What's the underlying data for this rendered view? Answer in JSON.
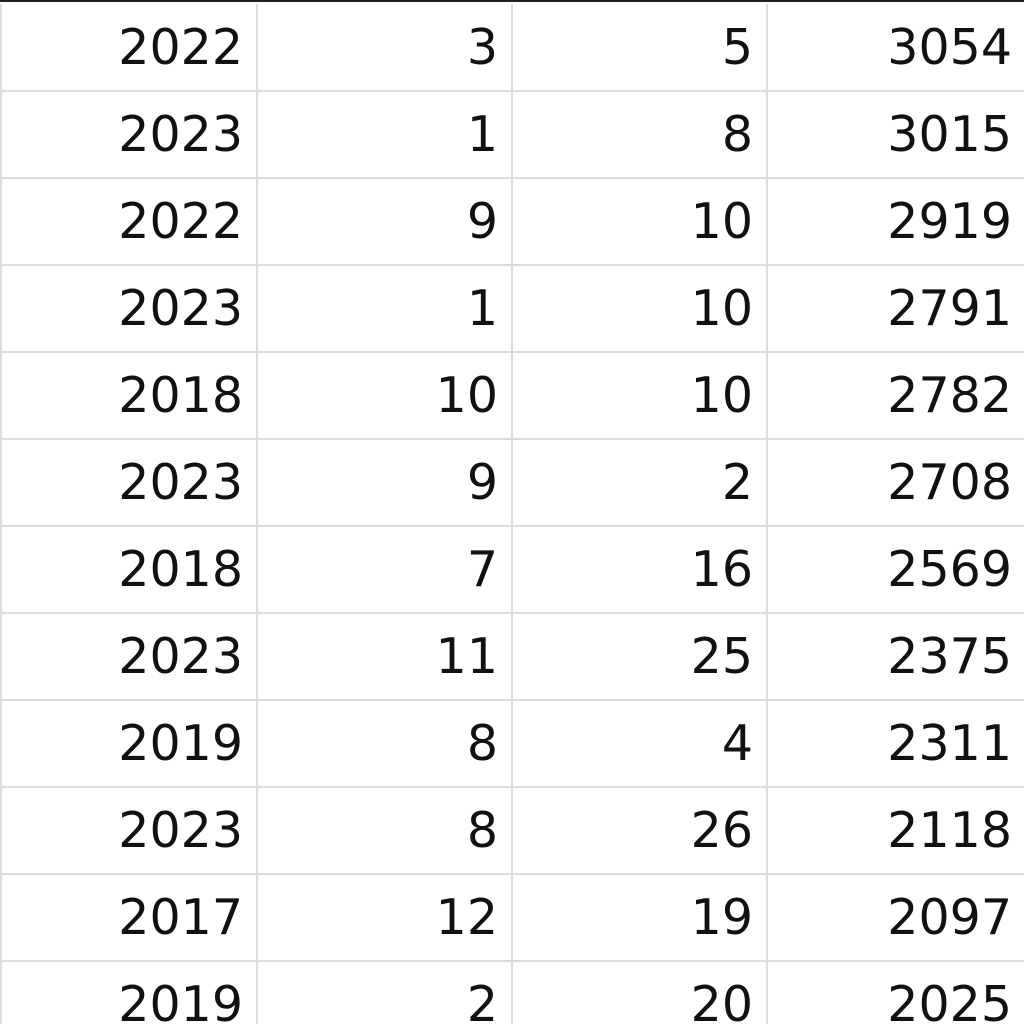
{
  "table": {
    "rows": [
      [
        "2022",
        "3",
        "5",
        "3054"
      ],
      [
        "2023",
        "1",
        "8",
        "3015"
      ],
      [
        "2022",
        "9",
        "10",
        "2919"
      ],
      [
        "2023",
        "1",
        "10",
        "2791"
      ],
      [
        "2018",
        "10",
        "10",
        "2782"
      ],
      [
        "2023",
        "9",
        "2",
        "2708"
      ],
      [
        "2018",
        "7",
        "16",
        "2569"
      ],
      [
        "2023",
        "11",
        "25",
        "2375"
      ],
      [
        "2019",
        "8",
        "4",
        "2311"
      ],
      [
        "2023",
        "8",
        "26",
        "2118"
      ],
      [
        "2017",
        "12",
        "19",
        "2097"
      ],
      [
        "2019",
        "2",
        "20",
        "2025"
      ]
    ]
  },
  "colors": {
    "text": "#111111",
    "gridline": "#dcdcdc",
    "top_border": "#1f1f1f",
    "background": "#ffffff"
  }
}
